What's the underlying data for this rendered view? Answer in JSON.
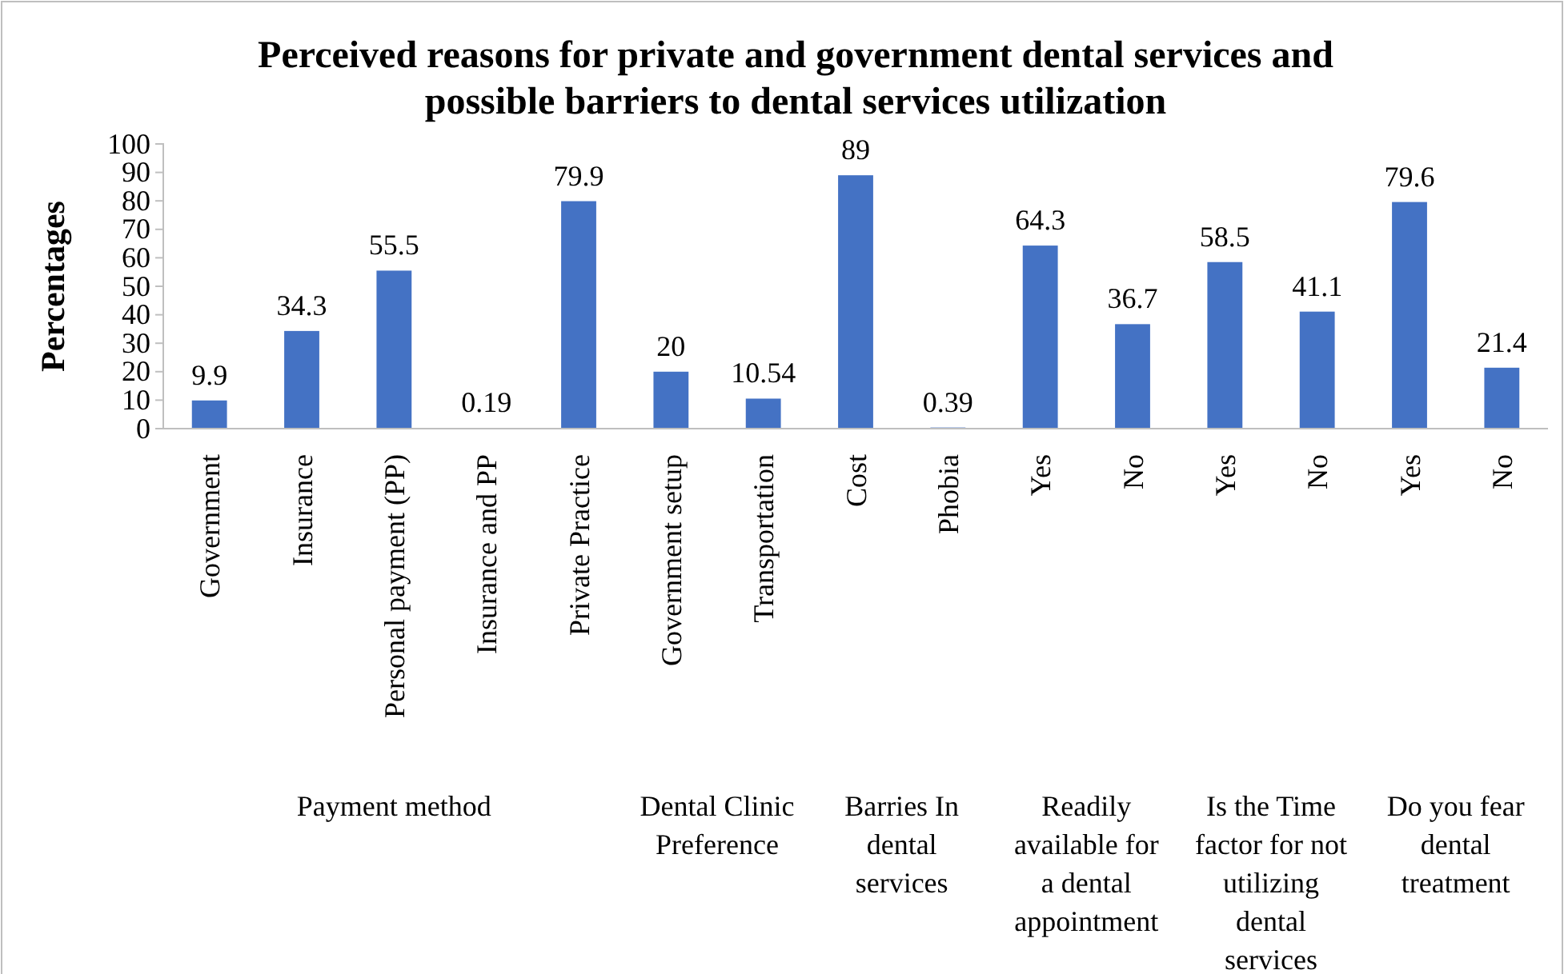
{
  "chart_data": {
    "type": "bar",
    "title": "Perceived reasons for private and government dental services and possible barriers to dental services utilization",
    "ylabel": "Percentages",
    "categories": [
      "Government",
      "Insurance",
      "Personal payment (PP)",
      "Insurance and PP",
      "Private Practice",
      "Government setup",
      "Transportation",
      "Cost",
      "Phobia",
      "Yes",
      "No",
      "Yes",
      "No",
      "Yes",
      "No"
    ],
    "values": [
      9.9,
      34.3,
      55.5,
      0.19,
      79.9,
      20,
      10.54,
      89,
      0.39,
      64.3,
      36.7,
      58.5,
      41.1,
      79.6,
      21.4
    ],
    "color": "#4472c4",
    "ylim": [
      0,
      100
    ],
    "yticks": [
      0,
      10,
      20,
      30,
      40,
      50,
      60,
      70,
      80,
      90,
      100
    ],
    "data_labels": true,
    "annotations": [
      "Payment method",
      "Dental Clinic Preference",
      "Barries In dental services",
      "Readily available for a dental appointment",
      "Is the Time factor for not utilizing dental services",
      "Do you fear dental treatment"
    ]
  }
}
